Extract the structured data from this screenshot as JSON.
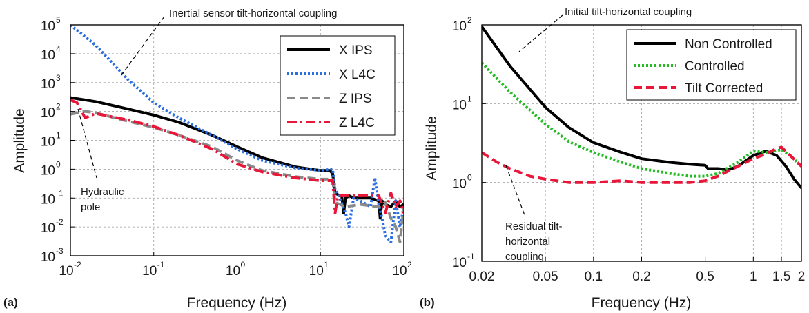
{
  "chart_data": [
    {
      "panel_label": "(a)",
      "type": "line",
      "xscale": "log",
      "yscale": "log",
      "xlim": [
        0.01,
        100
      ],
      "ylim": [
        0.001,
        100000
      ],
      "xticks": [
        "10",
        "10",
        "10",
        "10",
        "10"
      ],
      "xtick_exponents": [
        "-2",
        "-1",
        "0",
        "1",
        "2"
      ],
      "yticks": [
        "10",
        "10",
        "10",
        "10",
        "10",
        "10",
        "10",
        "10",
        "10"
      ],
      "ytick_exponents": [
        "-3",
        "-2",
        "-1",
        "0",
        "1",
        "2",
        "3",
        "4",
        "5"
      ],
      "xlabel": "Frequency (Hz)",
      "ylabel": "Amplitude",
      "grid": true,
      "legend_position": "top-right",
      "series": [
        {
          "name": "X IPS",
          "color": "#000000",
          "style": "solid",
          "x": [
            0.01,
            0.02,
            0.05,
            0.1,
            0.2,
            0.5,
            1,
            2,
            5,
            10,
            13,
            14,
            15,
            17,
            18,
            19,
            20,
            22,
            25,
            30,
            40,
            50,
            52,
            55,
            60,
            70,
            80,
            90,
            100
          ],
          "y": [
            300,
            220,
            120,
            75,
            42,
            15,
            6,
            2.5,
            1.2,
            0.9,
            0.9,
            0.7,
            0.15,
            0.12,
            0.12,
            0.03,
            0.1,
            0.12,
            0.1,
            0.1,
            0.1,
            0.08,
            0.02,
            0.08,
            0.06,
            0.05,
            0.08,
            0.05,
            0.06
          ]
        },
        {
          "name": "X L4C",
          "color": "#2a6ee0",
          "style": "dotted",
          "x": [
            0.01,
            0.02,
            0.05,
            0.1,
            0.2,
            0.5,
            1,
            2,
            5,
            10,
            14,
            15,
            17,
            20,
            22,
            25,
            30,
            40,
            45,
            50,
            55,
            60,
            70,
            80,
            90,
            100
          ],
          "y": [
            100000,
            20000,
            1200,
            200,
            60,
            15,
            5,
            2,
            1.1,
            0.9,
            1,
            0.2,
            0.1,
            0.03,
            0.01,
            0.1,
            0.08,
            0.05,
            0.5,
            0.06,
            0.02,
            0.005,
            0.003,
            0.08,
            0.01,
            0.05
          ]
        },
        {
          "name": "Z IPS",
          "color": "#8a8a8a",
          "style": "dashed",
          "x": [
            0.01,
            0.015,
            0.02,
            0.05,
            0.1,
            0.2,
            0.5,
            1,
            2,
            5,
            10,
            14,
            15,
            20,
            30,
            50,
            60,
            70,
            80,
            90,
            100
          ],
          "y": [
            80,
            100,
            90,
            45,
            28,
            15,
            6,
            2,
            0.9,
            0.55,
            0.45,
            0.45,
            0.07,
            0.05,
            0.06,
            0.05,
            0.07,
            0.02,
            0.01,
            0.003,
            0.05
          ]
        },
        {
          "name": "Z L4C",
          "color": "#e8173a",
          "style": "dashdot",
          "x": [
            0.01,
            0.012,
            0.015,
            0.02,
            0.05,
            0.1,
            0.2,
            0.5,
            1,
            2,
            5,
            10,
            14,
            15,
            16,
            17,
            20,
            30,
            40,
            50,
            60,
            70,
            80,
            90,
            100
          ],
          "y": [
            250,
            200,
            60,
            85,
            50,
            30,
            15,
            5,
            1.5,
            0.8,
            0.5,
            0.4,
            0.4,
            0.03,
            0.1,
            0.12,
            0.12,
            0.12,
            0.12,
            0.12,
            0.03,
            0.15,
            0.05,
            0.08,
            0.03
          ]
        }
      ],
      "annotations": [
        {
          "text": "Inertial sensor tilt-horizontal coupling"
        },
        {
          "text": "Hydraulic",
          "text2": "pole"
        }
      ]
    },
    {
      "panel_label": "(b)",
      "type": "line",
      "xscale": "log",
      "yscale": "log",
      "xlim": [
        0.02,
        2
      ],
      "ylim": [
        0.1,
        100
      ],
      "xticks": [
        "0.02",
        "0.05",
        "0.1",
        "0.2",
        "0.5",
        "1",
        "1.5",
        "2"
      ],
      "xtick_values": [
        0.02,
        0.05,
        0.1,
        0.2,
        0.5,
        1,
        1.5,
        2
      ],
      "yticks": [
        "10",
        "10",
        "10",
        "10"
      ],
      "ytick_exponents": [
        "-1",
        "0",
        "1",
        "2"
      ],
      "xlabel": "Frequency (Hz)",
      "ylabel": "Amplitude",
      "grid": true,
      "legend_position": "top-right",
      "series": [
        {
          "name": "Non Controlled",
          "color": "#000000",
          "style": "solid",
          "x": [
            0.02,
            0.03,
            0.05,
            0.07,
            0.1,
            0.15,
            0.2,
            0.3,
            0.4,
            0.5,
            0.52,
            0.6,
            0.7,
            0.8,
            1,
            1.2,
            1.4,
            1.6,
            1.8,
            2
          ],
          "y": [
            95,
            30,
            9,
            5,
            3.2,
            2.4,
            2.0,
            1.8,
            1.7,
            1.65,
            1.5,
            1.5,
            1.45,
            1.6,
            2.2,
            2.5,
            2.2,
            1.6,
            1.1,
            0.85
          ]
        },
        {
          "name": "Controlled",
          "color": "#22bb22",
          "style": "dotted",
          "x": [
            0.02,
            0.03,
            0.05,
            0.07,
            0.1,
            0.15,
            0.2,
            0.3,
            0.4,
            0.5,
            0.6,
            0.8,
            1,
            1.2,
            1.5,
            1.7,
            2
          ],
          "y": [
            33,
            14,
            5.5,
            3.3,
            2.4,
            1.8,
            1.5,
            1.3,
            1.2,
            1.2,
            1.3,
            1.8,
            2.5,
            2.4,
            2.6,
            2.2,
            1.6
          ]
        },
        {
          "name": "Tilt Corrected",
          "color": "#e8173a",
          "style": "dashed",
          "x": [
            0.02,
            0.025,
            0.03,
            0.04,
            0.05,
            0.07,
            0.1,
            0.15,
            0.2,
            0.3,
            0.4,
            0.5,
            0.6,
            0.8,
            1,
            1.2,
            1.4,
            1.5,
            1.7,
            2
          ],
          "y": [
            2.4,
            1.8,
            1.5,
            1.2,
            1.1,
            1.0,
            1.0,
            1.05,
            1.0,
            1.0,
            1.0,
            1.05,
            1.2,
            1.6,
            2.0,
            2.3,
            2.7,
            2.8,
            2.2,
            1.6
          ]
        }
      ],
      "annotations": [
        {
          "text": "Initial tilt-horizontal coupling"
        },
        {
          "text": "Residual tilt-",
          "text2": "horizontal",
          "text3": "coupling"
        }
      ]
    }
  ]
}
